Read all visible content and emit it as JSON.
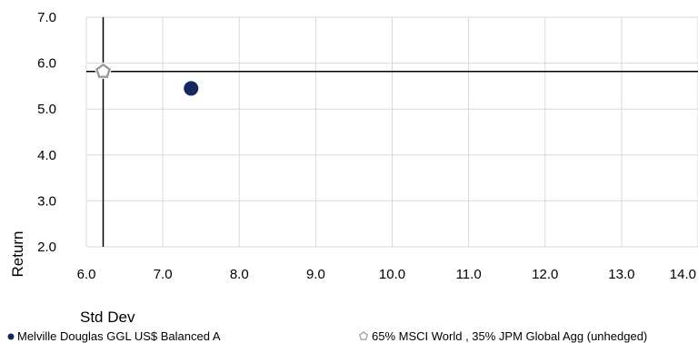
{
  "chart_data": {
    "type": "scatter",
    "xlabel": "Std Dev",
    "ylabel": "Return",
    "xlim": [
      6.0,
      14.0
    ],
    "ylim": [
      2.0,
      7.0
    ],
    "x_ticks": [
      "6.0",
      "7.0",
      "8.0",
      "9.0",
      "10.0",
      "11.0",
      "12.0",
      "13.0",
      "14.0"
    ],
    "y_ticks": [
      "2.0",
      "3.0",
      "4.0",
      "5.0",
      "6.0",
      "7.0"
    ],
    "grid": true,
    "legend_position": "bottom",
    "crosshair": {
      "x": 6.22,
      "y": 5.82
    },
    "series": [
      {
        "name": "Melville Douglas GGL US$ Balanced A",
        "marker": "circle",
        "color": "#14285f",
        "points": [
          {
            "x": 7.37,
            "y": 5.45
          }
        ]
      },
      {
        "name": "65% MSCI World , 35% JPM Global Agg (unhedged)",
        "marker": "pentagon",
        "color": "#9a9a9a",
        "points": [
          {
            "x": 6.22,
            "y": 5.82
          }
        ]
      }
    ]
  }
}
